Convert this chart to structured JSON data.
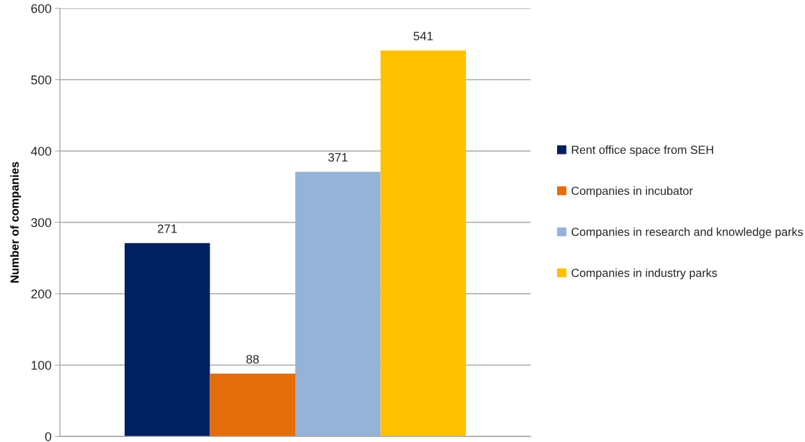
{
  "chart_data": {
    "type": "bar",
    "ylabel": "Number of companies",
    "categories": [
      null
    ],
    "series": [
      {
        "name": "Rent office space from SEH",
        "color": "#002060",
        "values": [
          271
        ]
      },
      {
        "name": "Companies in incubator",
        "color": "#e46c0a",
        "values": [
          88
        ]
      },
      {
        "name": "Companies in research and knowledge parks",
        "color": "#95b3d7",
        "values": [
          371
        ]
      },
      {
        "name": "Companies in industry parks",
        "color": "#ffc000",
        "values": [
          541
        ]
      }
    ],
    "ylim": [
      0,
      600
    ],
    "yticks": [
      0,
      100,
      200,
      300,
      400,
      500,
      600
    ],
    "grid": "y",
    "legend": "right",
    "data_labels": true
  }
}
